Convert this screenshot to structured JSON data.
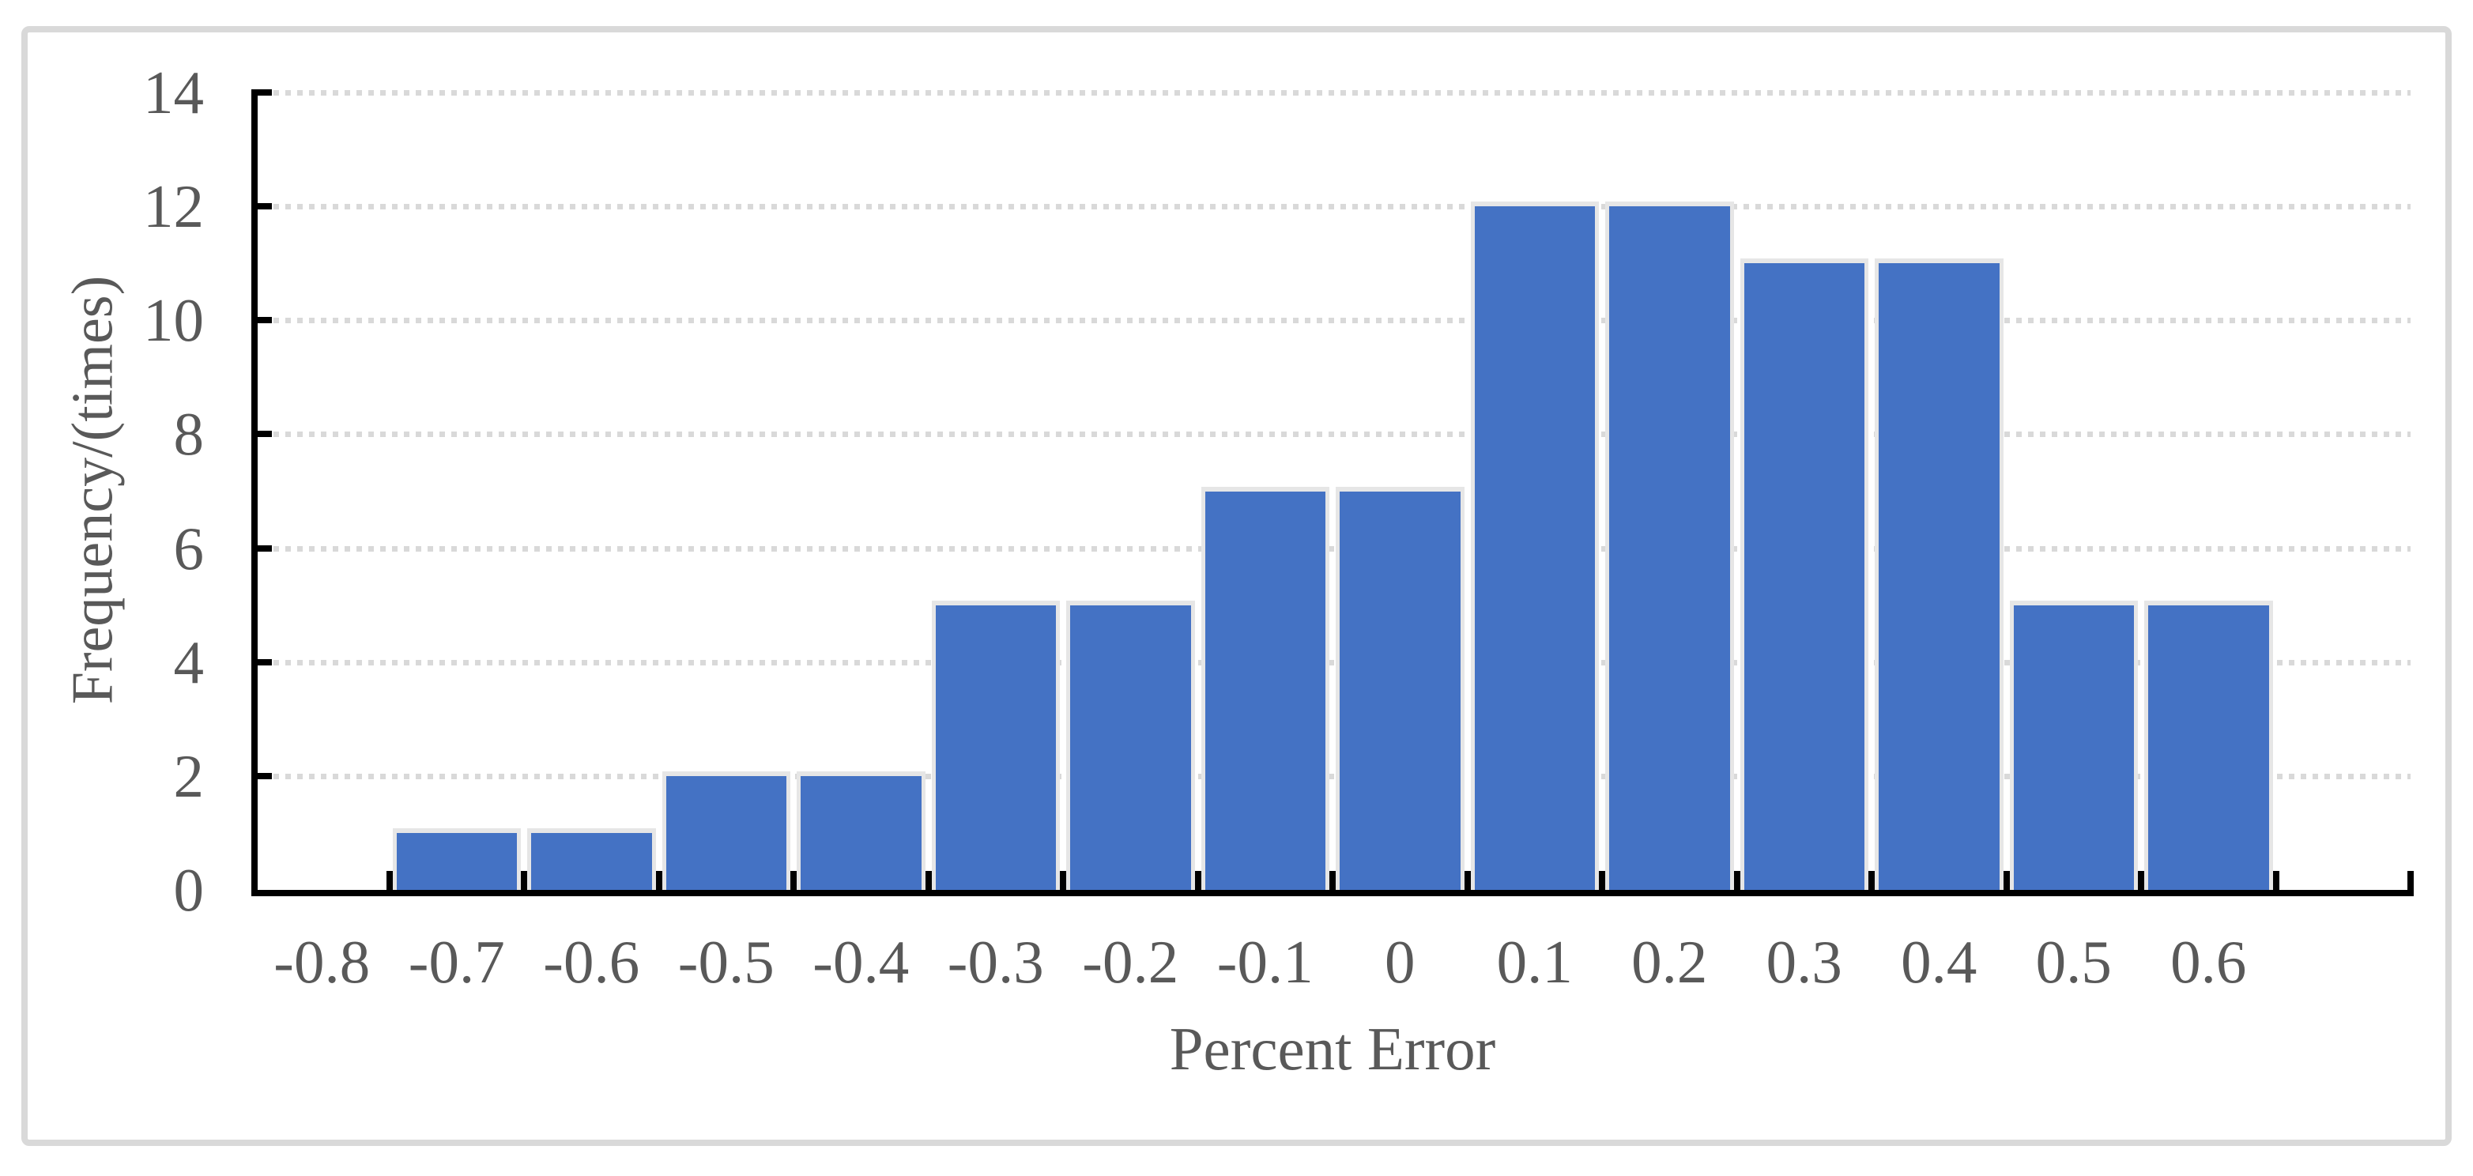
{
  "chart_data": {
    "type": "bar",
    "title": "",
    "categories": [
      "-0.8",
      "-0.7",
      "-0.6",
      "-0.5",
      "-0.4",
      "-0.3",
      "-0.2",
      "-0.1",
      "0",
      "0.1",
      "0.2",
      "0.3",
      "0.4",
      "0.5",
      "0.6"
    ],
    "values": [
      0,
      1,
      1,
      2,
      2,
      5,
      5,
      7,
      7,
      12,
      12,
      11,
      11,
      5,
      5
    ],
    "xlabel": "Percent Error",
    "ylabel": "Frequency/(times)",
    "ylim": [
      0,
      14
    ],
    "yticks": [
      0,
      2,
      4,
      6,
      8,
      10,
      12,
      14
    ],
    "legend": "none",
    "grid": "horizontal-dotted",
    "colors": {
      "bar_fill": "#4472C4",
      "bar_outline": "#E6E6E6",
      "gridline": "#D9D9D9",
      "axis": "#000000",
      "text": "#595959",
      "chart_border": "#D9D9D9",
      "background": "#FFFFFF"
    }
  }
}
